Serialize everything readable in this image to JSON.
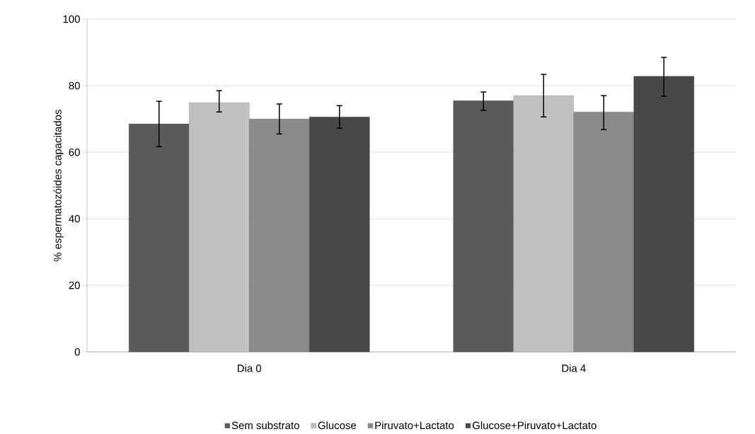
{
  "chart_data": {
    "type": "bar",
    "ylabel": "% espermatozóides capacitados",
    "categories": [
      "Dia 0",
      "Dia 4"
    ],
    "series": [
      {
        "name": "Sem substrato",
        "color": "#5a5a5a",
        "values": [
          68.5,
          75.5
        ],
        "errors": [
          [
            61.7,
            75.3
          ],
          [
            72.6,
            78.1
          ]
        ]
      },
      {
        "name": "Glucose",
        "color": "#c0c0c0",
        "values": [
          74.9,
          77
        ],
        "errors": [
          [
            72.1,
            78.5
          ],
          [
            70.6,
            83.4
          ]
        ]
      },
      {
        "name": "Piruvato+Lactato",
        "color": "#8a8a8a",
        "values": [
          70,
          72.1
        ],
        "errors": [
          [
            65.5,
            74.5
          ],
          [
            66.8,
            77
          ]
        ]
      },
      {
        "name": "Glucose+Piruvato+Lactato",
        "color": "#484848",
        "values": [
          70.6,
          82.8
        ],
        "errors": [
          [
            67.2,
            74
          ],
          [
            76.8,
            88.5
          ]
        ]
      }
    ],
    "ylim": [
      0,
      100
    ],
    "yticks": [
      0,
      20,
      40,
      60,
      80,
      100
    ],
    "grid": "y",
    "legend": "bottom"
  }
}
